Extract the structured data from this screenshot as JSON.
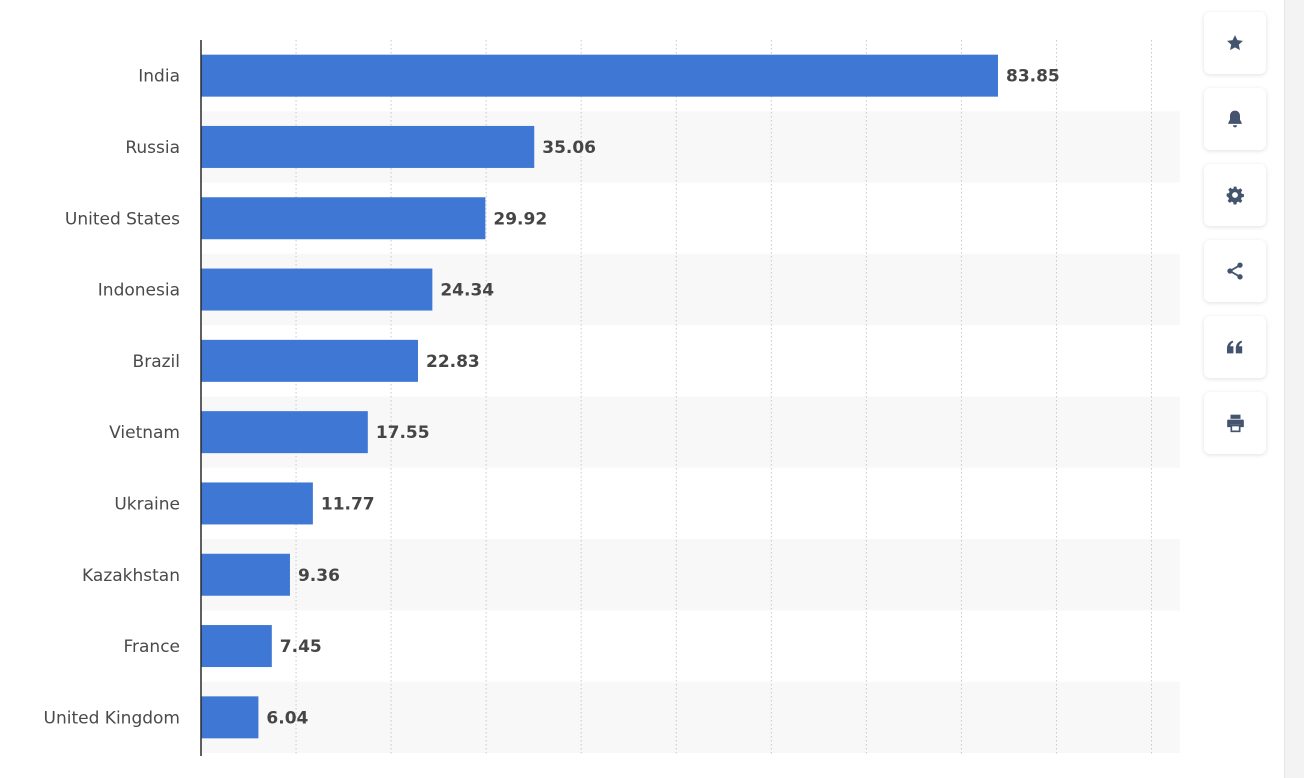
{
  "chart_data": {
    "type": "bar",
    "orientation": "horizontal",
    "categories": [
      "India",
      "Russia",
      "United States",
      "Indonesia",
      "Brazil",
      "Vietnam",
      "Ukraine",
      "Kazakhstan",
      "France",
      "United Kingdom"
    ],
    "values": [
      83.85,
      35.06,
      29.92,
      24.34,
      22.83,
      17.55,
      11.77,
      9.36,
      7.45,
      6.04
    ],
    "value_labels": [
      "83.85",
      "35.06",
      "29.92",
      "24.34",
      "22.83",
      "17.55",
      "11.77",
      "9.36",
      "7.45",
      "6.04"
    ],
    "xlim": [
      0,
      100
    ],
    "grid_step": 10,
    "grid": true,
    "bar_color": "#3f78d4",
    "title": "",
    "xlabel": "",
    "ylabel": ""
  },
  "toolbar": {
    "buttons": [
      {
        "icon": "star-icon",
        "action": "favorite"
      },
      {
        "icon": "bell-icon",
        "action": "notify"
      },
      {
        "icon": "gear-icon",
        "action": "settings"
      },
      {
        "icon": "share-icon",
        "action": "share"
      },
      {
        "icon": "quote-icon",
        "action": "cite"
      },
      {
        "icon": "printer-icon",
        "action": "print"
      }
    ],
    "icon_color": "#44546f"
  }
}
